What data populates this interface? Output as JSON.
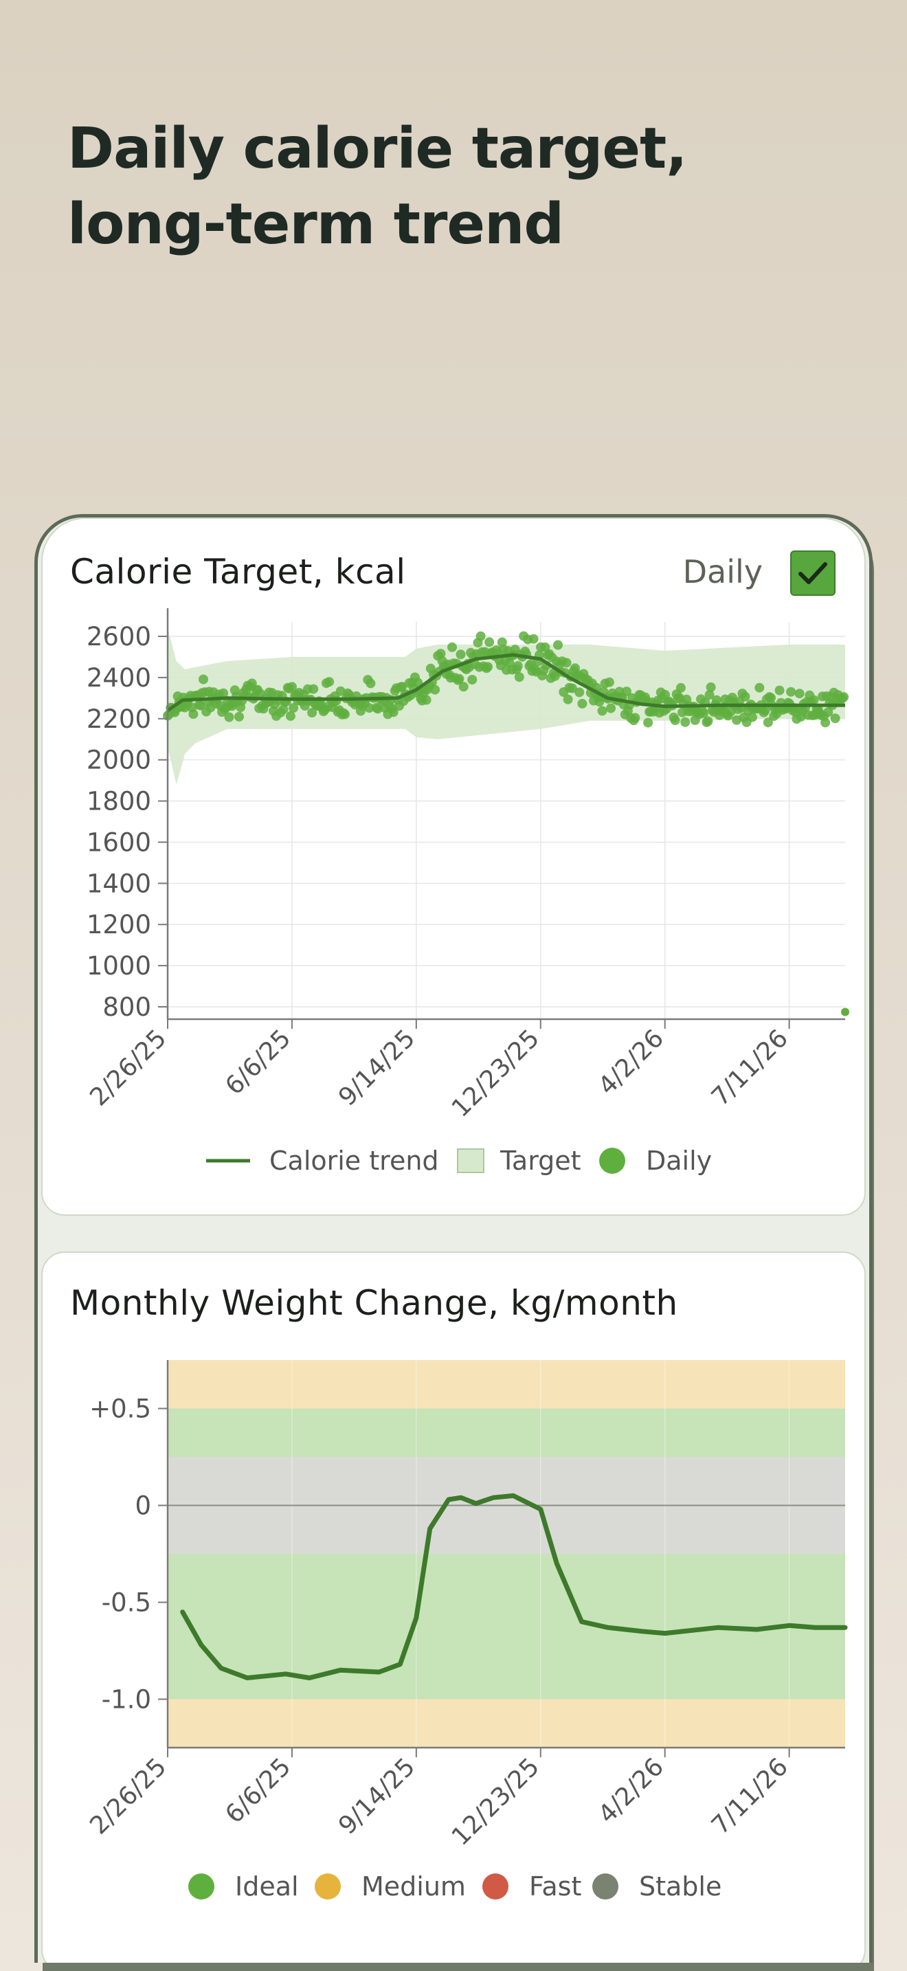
{
  "headline": {
    "line1": "Daily calorie target,",
    "line2": "long-term trend"
  },
  "calorie_card": {
    "title": "Calorie Target, kcal",
    "toggle_label": "Daily",
    "toggle_checked": true
  },
  "weight_card": {
    "title": "Monthly Weight Change, kg/month"
  },
  "colors": {
    "trend_line": "#3d7a2b",
    "daily_dot": "#5faf3f",
    "target_band": "#d6e9cd",
    "ideal": "#5faf3f",
    "medium": "#e6b43c",
    "fast": "#d05a45",
    "stable": "#7a8272",
    "zone_medium": "#f6e4b8",
    "zone_ideal": "#c7e3b8",
    "zone_stable": "#d9dad5"
  },
  "chart_data": [
    {
      "type": "line",
      "title": "Calorie Target, kcal",
      "xlabel": "",
      "ylabel": "",
      "x_ticks": [
        "2/26/25",
        "6/6/25",
        "9/14/25",
        "12/23/25",
        "4/2/26",
        "7/11/26"
      ],
      "y_ticks": [
        2600,
        2400,
        2200,
        2000,
        1800,
        1600,
        1400,
        1200,
        1000,
        800
      ],
      "ylim": [
        740,
        2670
      ],
      "xlim": [
        "2/26/25",
        "8/25/26"
      ],
      "grid": true,
      "legend_position": "bottom",
      "legend": [
        "Calorie trend",
        "Target",
        "Daily"
      ],
      "series": [
        {
          "name": "Calorie trend",
          "style": "line",
          "x": [
            "2/26/25",
            "3/10/25",
            "4/15/25",
            "6/6/25",
            "7/20/25",
            "8/30/25",
            "9/14/25",
            "10/5/25",
            "11/1/25",
            "12/1/25",
            "12/23/25",
            "1/15/26",
            "2/15/26",
            "3/15/26",
            "4/2/26",
            "5/15/26",
            "7/11/26",
            "8/25/26"
          ],
          "values": [
            2240,
            2290,
            2300,
            2295,
            2295,
            2300,
            2340,
            2430,
            2490,
            2510,
            2490,
            2400,
            2300,
            2270,
            2260,
            2265,
            2265,
            2265
          ]
        },
        {
          "name": "Target",
          "style": "band",
          "x": [
            "2/26/25",
            "3/5/25",
            "3/12/25",
            "3/20/25",
            "4/15/25",
            "6/6/25",
            "9/5/25",
            "9/14/25",
            "10/1/25",
            "12/23/25",
            "2/1/26",
            "4/2/26",
            "7/11/26",
            "8/25/26"
          ],
          "lower": [
            2060,
            1880,
            2030,
            2080,
            2150,
            2150,
            2150,
            2110,
            2100,
            2150,
            2190,
            2190,
            2200,
            2200
          ],
          "upper": [
            2640,
            2480,
            2440,
            2450,
            2480,
            2500,
            2500,
            2540,
            2560,
            2560,
            2560,
            2530,
            2560,
            2560
          ]
        },
        {
          "name": "Daily",
          "style": "points",
          "outliers": [
            {
              "x": "8/25/26",
              "y": 775
            }
          ]
        }
      ]
    },
    {
      "type": "line",
      "title": "Monthly Weight Change, kg/month",
      "xlabel": "",
      "ylabel": "",
      "x_ticks": [
        "2/26/25",
        "6/6/25",
        "9/14/25",
        "12/23/25",
        "4/2/26",
        "7/11/26"
      ],
      "y_ticks": [
        "+0.5",
        "0",
        "-0.5",
        "-1.0"
      ],
      "ylim": [
        -1.25,
        0.75
      ],
      "xlim": [
        "2/26/25",
        "8/25/26"
      ],
      "grid": true,
      "legend_position": "bottom",
      "legend": [
        "Ideal",
        "Medium",
        "Fast",
        "Stable"
      ],
      "zones": [
        {
          "name": "Medium",
          "from": 0.5,
          "to": 0.75
        },
        {
          "name": "Ideal",
          "from": 0.25,
          "to": 0.5
        },
        {
          "name": "Stable",
          "from": -0.25,
          "to": 0.25
        },
        {
          "name": "Ideal",
          "from": -1.0,
          "to": -0.25
        },
        {
          "name": "Medium",
          "from": -1.25,
          "to": -1.0
        }
      ],
      "series": [
        {
          "name": "Weight change",
          "x": [
            "3/10/25",
            "3/25/25",
            "4/10/25",
            "5/1/25",
            "6/1/25",
            "6/20/25",
            "7/15/25",
            "8/15/25",
            "9/1/25",
            "9/14/25",
            "9/25/25",
            "10/10/25",
            "10/20/25",
            "11/1/25",
            "11/15/25",
            "12/1/25",
            "12/23/25",
            "1/5/26",
            "1/25/26",
            "2/15/26",
            "3/15/26",
            "4/2/26",
            "5/15/26",
            "6/15/26",
            "7/11/26",
            "8/1/26",
            "8/25/26"
          ],
          "values": [
            -0.55,
            -0.72,
            -0.84,
            -0.89,
            -0.87,
            -0.89,
            -0.85,
            -0.86,
            -0.82,
            -0.58,
            -0.12,
            0.03,
            0.04,
            0.01,
            0.04,
            0.05,
            -0.02,
            -0.3,
            -0.6,
            -0.63,
            -0.65,
            -0.66,
            -0.63,
            -0.64,
            -0.62,
            -0.63,
            -0.63
          ]
        }
      ]
    }
  ]
}
